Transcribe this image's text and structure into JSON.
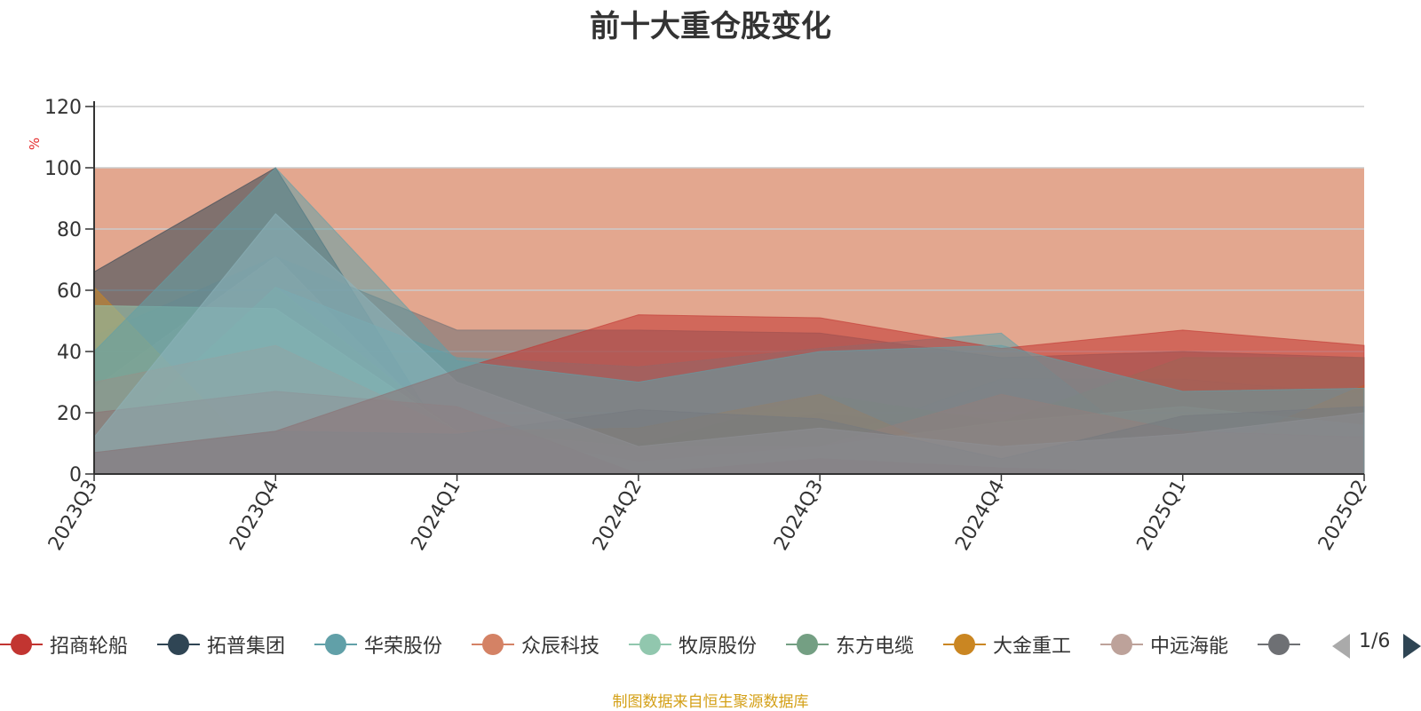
{
  "title": "前十大重仓股变化",
  "source_note": "制图数据来自恒生聚源数据库",
  "pager": {
    "text": "1/6"
  },
  "chart_data": {
    "type": "area",
    "title": "前十大重仓股变化",
    "ylabel": "%",
    "ylim": [
      0,
      120
    ],
    "yticks": [
      0,
      20,
      40,
      60,
      80,
      100,
      120
    ],
    "grid": true,
    "legend_position": "bottom",
    "categories": [
      "2023Q3",
      "2023Q4",
      "2024Q1",
      "2024Q2",
      "2024Q3",
      "2024Q4",
      "2025Q1",
      "2025Q2"
    ],
    "background_band": {
      "value": 100,
      "color": "#d9896a"
    },
    "series": [
      {
        "name": "招商轮船",
        "color": "#c23531",
        "values": [
          20,
          27,
          22,
          0,
          5,
          2,
          0,
          0
        ]
      },
      {
        "name": "拓普集团",
        "color": "#2f4554",
        "values": [
          66,
          100,
          5,
          9,
          20,
          13,
          4,
          5
        ]
      },
      {
        "name": "华荣股份",
        "color": "#61a0a8",
        "values": [
          6,
          61,
          38,
          35,
          41,
          46,
          0,
          9
        ]
      },
      {
        "name": "众辰科技",
        "color": "#d48265",
        "values": [
          30,
          42,
          14,
          9,
          9,
          26,
          14,
          12
        ]
      },
      {
        "name": "牧原股份",
        "color": "#91c7ae",
        "values": [
          55,
          54,
          14,
          4,
          9,
          17,
          22,
          16
        ]
      },
      {
        "name": "东方电缆",
        "color": "#749f83",
        "values": [
          6,
          61,
          14,
          9,
          26,
          17,
          38,
          38
        ]
      },
      {
        "name": "大金重工",
        "color": "#ca8622",
        "values": [
          61,
          0,
          14,
          15,
          26,
          0,
          4,
          29
        ]
      },
      {
        "name": "中远海能",
        "color": "#bda29a",
        "values": [
          28,
          71,
          10,
          10,
          10,
          31,
          31,
          26
        ]
      },
      {
        "name": "",
        "color": "#6e7074",
        "values": [
          45,
          71,
          47,
          47,
          46,
          38,
          40,
          38
        ]
      }
    ],
    "extra_layers": [
      {
        "color": "#546570",
        "values": [
          7,
          14,
          13,
          21,
          18,
          5,
          19,
          22
        ]
      },
      {
        "color": "#c4ccd3",
        "values": [
          12,
          85,
          30,
          9,
          15,
          9,
          13,
          20
        ]
      },
      {
        "color": "#c23531",
        "values": [
          7,
          14,
          34,
          52,
          51,
          41,
          47,
          42
        ]
      },
      {
        "color": "#61a0a8",
        "values": [
          40,
          100,
          37,
          30,
          40,
          42,
          27,
          28
        ]
      }
    ]
  }
}
